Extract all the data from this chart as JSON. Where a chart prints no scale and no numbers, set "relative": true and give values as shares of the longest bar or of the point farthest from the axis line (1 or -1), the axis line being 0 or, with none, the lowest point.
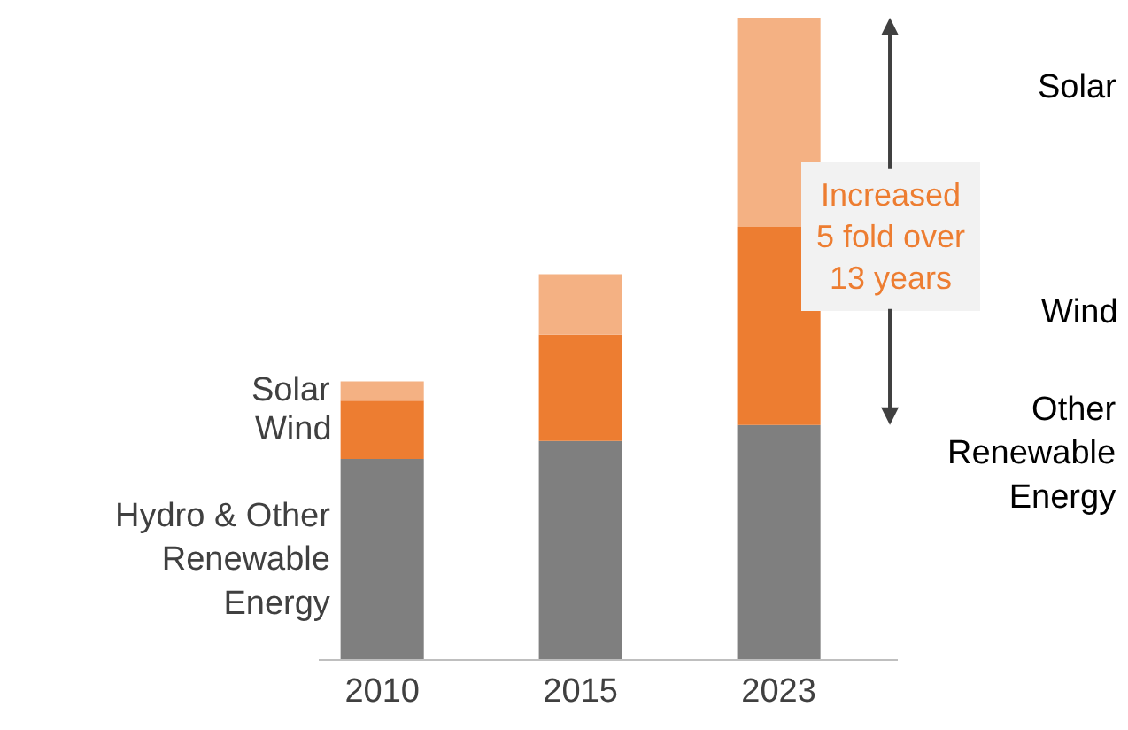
{
  "chart_data": {
    "type": "bar",
    "stacked": true,
    "relative": true,
    "legend": false,
    "categories": [
      "2010",
      "2015",
      "2023"
    ],
    "series": [
      {
        "name": "Hydro & Other Renewable Energy",
        "color": "#7f7f7f",
        "values": [
          0.312,
          0.34,
          0.365
        ]
      },
      {
        "name": "Wind",
        "color": "#ed7d31",
        "values": [
          0.091,
          0.166,
          0.309
        ]
      },
      {
        "name": "Solar",
        "color": "#f4b183",
        "values": [
          0.03,
          0.094,
          0.326
        ]
      }
    ],
    "annotations": [
      "Increased\n5 fold over\n13 years",
      "Other Renewable Energy",
      "Wind",
      "Solar"
    ]
  }
}
